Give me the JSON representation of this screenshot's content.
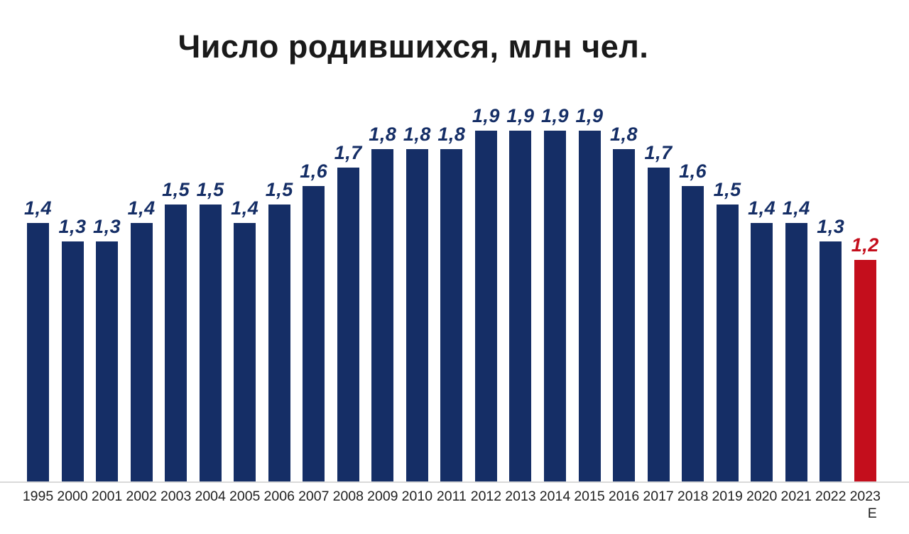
{
  "chart_data": {
    "type": "bar",
    "title": "Число родившихся, млн чел.",
    "categories": [
      "1995",
      "2000",
      "2001",
      "2002",
      "2003",
      "2004",
      "2005",
      "2006",
      "2007",
      "2008",
      "2009",
      "2010",
      "2011",
      "2012",
      "2013",
      "2014",
      "2015",
      "2016",
      "2017",
      "2018",
      "2019",
      "2020",
      "2021",
      "2022",
      "2023"
    ],
    "values": [
      1.4,
      1.3,
      1.3,
      1.4,
      1.5,
      1.5,
      1.4,
      1.5,
      1.6,
      1.7,
      1.8,
      1.8,
      1.8,
      1.9,
      1.9,
      1.9,
      1.9,
      1.8,
      1.7,
      1.6,
      1.5,
      1.4,
      1.4,
      1.3,
      1.2
    ],
    "value_labels": [
      "1,4",
      "1,3",
      "1,3",
      "1,4",
      "1,5",
      "1,5",
      "1,4",
      "1,5",
      "1,6",
      "1,7",
      "1,8",
      "1,8",
      "1,8",
      "1,9",
      "1,9",
      "1,9",
      "1,9",
      "1,8",
      "1,7",
      "1,6",
      "1,5",
      "1,4",
      "1,4",
      "1,3",
      "1,2"
    ],
    "highlight_index": 24,
    "estimate_note": "E",
    "xlabel": "",
    "ylabel": "",
    "ylim": [
      0,
      2
    ],
    "grid": false,
    "legend": "none",
    "colors": {
      "bar": "#152E66",
      "highlight": "#C40E1C",
      "baseline": "#D9D9D9",
      "title_text": "#1A1A1A",
      "axis_text": "#212121"
    }
  }
}
